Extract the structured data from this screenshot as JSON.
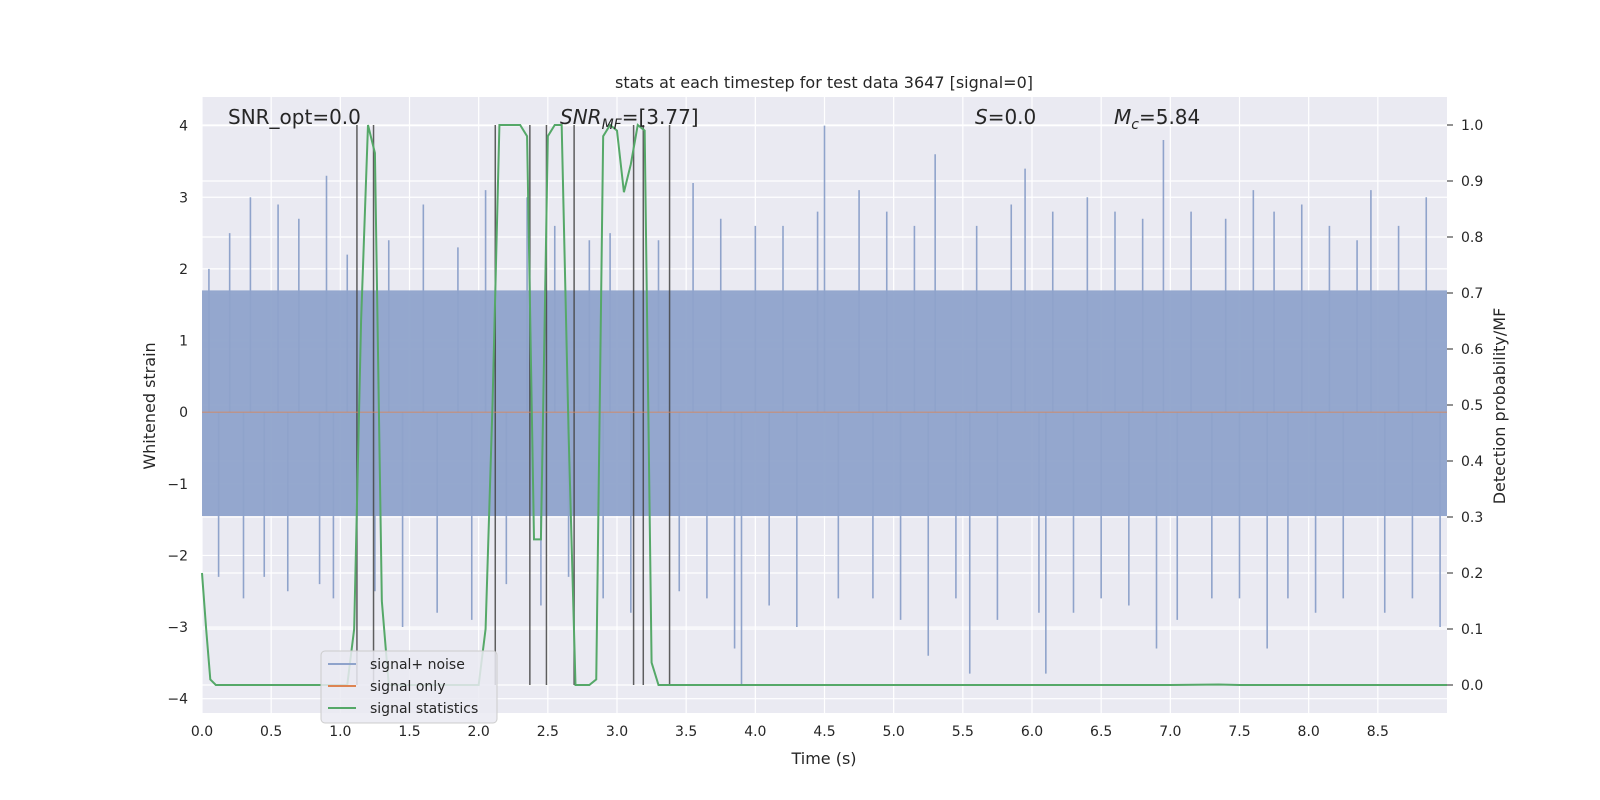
{
  "chart_data": {
    "type": "line",
    "title": "stats at each timestep for test data 3647 [signal=0]",
    "xlabel": "Time (s)",
    "ylabel": "Whitened strain",
    "y2label": "Detection probability/MF",
    "xlim": [
      0.0,
      9.0
    ],
    "ylim": [
      -4.2,
      4.4
    ],
    "y2lim": [
      -0.05,
      1.05
    ],
    "x_ticks": [
      0.0,
      0.5,
      1.0,
      1.5,
      2.0,
      2.5,
      3.0,
      3.5,
      4.0,
      4.5,
      5.0,
      5.5,
      6.0,
      6.5,
      7.0,
      7.5,
      8.0,
      8.5
    ],
    "y_ticks": [
      -4,
      -3,
      -2,
      -1,
      0,
      1,
      2,
      3,
      4
    ],
    "y2_ticks": [
      0.0,
      0.1,
      0.2,
      0.3,
      0.4,
      0.5,
      0.6,
      0.7,
      0.8,
      0.9,
      1.0
    ],
    "grid": true,
    "legend_position": "bottom-left",
    "annotations": {
      "snr_opt": "SNR_opt=0.0",
      "snr_mf_prefix": "SNR",
      "snr_mf_sub": "MF",
      "snr_mf_value": "=[3.77]",
      "s_prefix": "S",
      "s_value": "=0.0",
      "mc_prefix": "M",
      "mc_sub": "c",
      "mc_value": "=5.84"
    },
    "series": [
      {
        "name": "signal+ noise",
        "color": "#8fa3cb",
        "axis": "left",
        "noise_band": [
          -1.45,
          1.7
        ],
        "peaks": [
          [
            0.05,
            2.0
          ],
          [
            0.12,
            -2.3
          ],
          [
            0.2,
            2.5
          ],
          [
            0.3,
            -2.6
          ],
          [
            0.35,
            3.0
          ],
          [
            0.45,
            -2.3
          ],
          [
            0.55,
            2.9
          ],
          [
            0.62,
            -2.5
          ],
          [
            0.7,
            2.7
          ],
          [
            0.85,
            -2.4
          ],
          [
            0.9,
            3.3
          ],
          [
            0.95,
            -2.6
          ],
          [
            1.05,
            2.2
          ],
          [
            1.25,
            -2.5
          ],
          [
            1.35,
            2.4
          ],
          [
            1.45,
            -3.0
          ],
          [
            1.6,
            2.9
          ],
          [
            1.7,
            -2.8
          ],
          [
            1.85,
            2.3
          ],
          [
            1.95,
            -2.9
          ],
          [
            2.05,
            3.1
          ],
          [
            2.2,
            -2.4
          ],
          [
            2.35,
            3.0
          ],
          [
            2.45,
            -2.7
          ],
          [
            2.55,
            2.6
          ],
          [
            2.65,
            -2.3
          ],
          [
            2.8,
            2.4
          ],
          [
            2.9,
            -2.6
          ],
          [
            2.95,
            2.5
          ],
          [
            3.1,
            -2.8
          ],
          [
            3.3,
            2.4
          ],
          [
            3.45,
            -2.5
          ],
          [
            3.55,
            3.2
          ],
          [
            3.65,
            -2.6
          ],
          [
            3.75,
            2.7
          ],
          [
            3.85,
            -3.3
          ],
          [
            3.9,
            -3.8
          ],
          [
            4.0,
            2.6
          ],
          [
            4.1,
            -2.7
          ],
          [
            4.2,
            2.6
          ],
          [
            4.3,
            -3.0
          ],
          [
            4.45,
            2.8
          ],
          [
            4.5,
            4.0
          ],
          [
            4.6,
            -2.6
          ],
          [
            4.75,
            3.1
          ],
          [
            4.85,
            -2.6
          ],
          [
            4.95,
            2.8
          ],
          [
            5.05,
            -2.9
          ],
          [
            5.15,
            2.6
          ],
          [
            5.25,
            -3.4
          ],
          [
            5.3,
            3.6
          ],
          [
            5.45,
            -2.6
          ],
          [
            5.55,
            -3.65
          ],
          [
            5.6,
            2.6
          ],
          [
            5.75,
            -2.9
          ],
          [
            5.85,
            2.9
          ],
          [
            5.95,
            3.4
          ],
          [
            6.05,
            -2.8
          ],
          [
            6.1,
            -3.65
          ],
          [
            6.15,
            2.8
          ],
          [
            6.3,
            -2.8
          ],
          [
            6.4,
            3.0
          ],
          [
            6.5,
            -2.6
          ],
          [
            6.6,
            2.8
          ],
          [
            6.7,
            -2.7
          ],
          [
            6.8,
            2.7
          ],
          [
            6.9,
            -3.3
          ],
          [
            6.95,
            3.8
          ],
          [
            7.05,
            -2.9
          ],
          [
            7.15,
            2.8
          ],
          [
            7.3,
            -2.6
          ],
          [
            7.4,
            2.7
          ],
          [
            7.5,
            -2.6
          ],
          [
            7.6,
            3.1
          ],
          [
            7.7,
            -3.3
          ],
          [
            7.75,
            2.8
          ],
          [
            7.85,
            -2.6
          ],
          [
            7.95,
            2.9
          ],
          [
            8.05,
            -2.8
          ],
          [
            8.15,
            2.6
          ],
          [
            8.25,
            -2.6
          ],
          [
            8.35,
            2.4
          ],
          [
            8.45,
            3.1
          ],
          [
            8.55,
            -2.8
          ],
          [
            8.65,
            2.6
          ],
          [
            8.75,
            -2.6
          ],
          [
            8.85,
            3.0
          ],
          [
            8.95,
            -3.0
          ]
        ]
      },
      {
        "name": "signal only",
        "color": "#dd8452",
        "axis": "left",
        "x": [
          0.0,
          9.0
        ],
        "y": [
          0.0,
          0.0
        ]
      },
      {
        "name": "signal statistics",
        "color": "#55a868",
        "axis": "right",
        "x": [
          0.0,
          0.03,
          0.06,
          0.1,
          0.15,
          0.2,
          0.5,
          1.0,
          1.05,
          1.1,
          1.15,
          1.2,
          1.25,
          1.3,
          1.35,
          1.4,
          1.5,
          2.0,
          2.05,
          2.1,
          2.15,
          2.2,
          2.3,
          2.35,
          2.4,
          2.45,
          2.5,
          2.55,
          2.6,
          2.65,
          2.7,
          2.75,
          2.8,
          2.85,
          2.9,
          2.95,
          3.0,
          3.05,
          3.1,
          3.15,
          3.2,
          3.25,
          3.3,
          3.35,
          3.4,
          3.45,
          3.5,
          4.0,
          5.0,
          6.0,
          7.0,
          7.35,
          7.5,
          8.0,
          9.0
        ],
        "y": [
          0.2,
          0.1,
          0.01,
          0.0,
          0.0,
          0.0,
          0.0,
          0.0,
          0.0,
          0.1,
          0.65,
          1.0,
          0.95,
          0.15,
          0.0,
          0.0,
          0.0,
          0.0,
          0.1,
          0.5,
          1.0,
          1.0,
          1.0,
          0.98,
          0.26,
          0.26,
          0.98,
          1.0,
          1.0,
          0.45,
          0.0,
          0.0,
          0.0,
          0.01,
          0.98,
          1.0,
          0.99,
          0.88,
          0.93,
          1.0,
          0.99,
          0.04,
          0.0,
          0.0,
          0.0,
          0.0,
          0.0,
          0.0,
          0.0,
          0.0,
          0.0,
          0.001,
          0.0,
          0.0,
          0.0
        ]
      }
    ],
    "event_lines": [
      1.12,
      1.24,
      2.12,
      2.37,
      2.49,
      2.69,
      3.12,
      3.19,
      3.38
    ]
  }
}
